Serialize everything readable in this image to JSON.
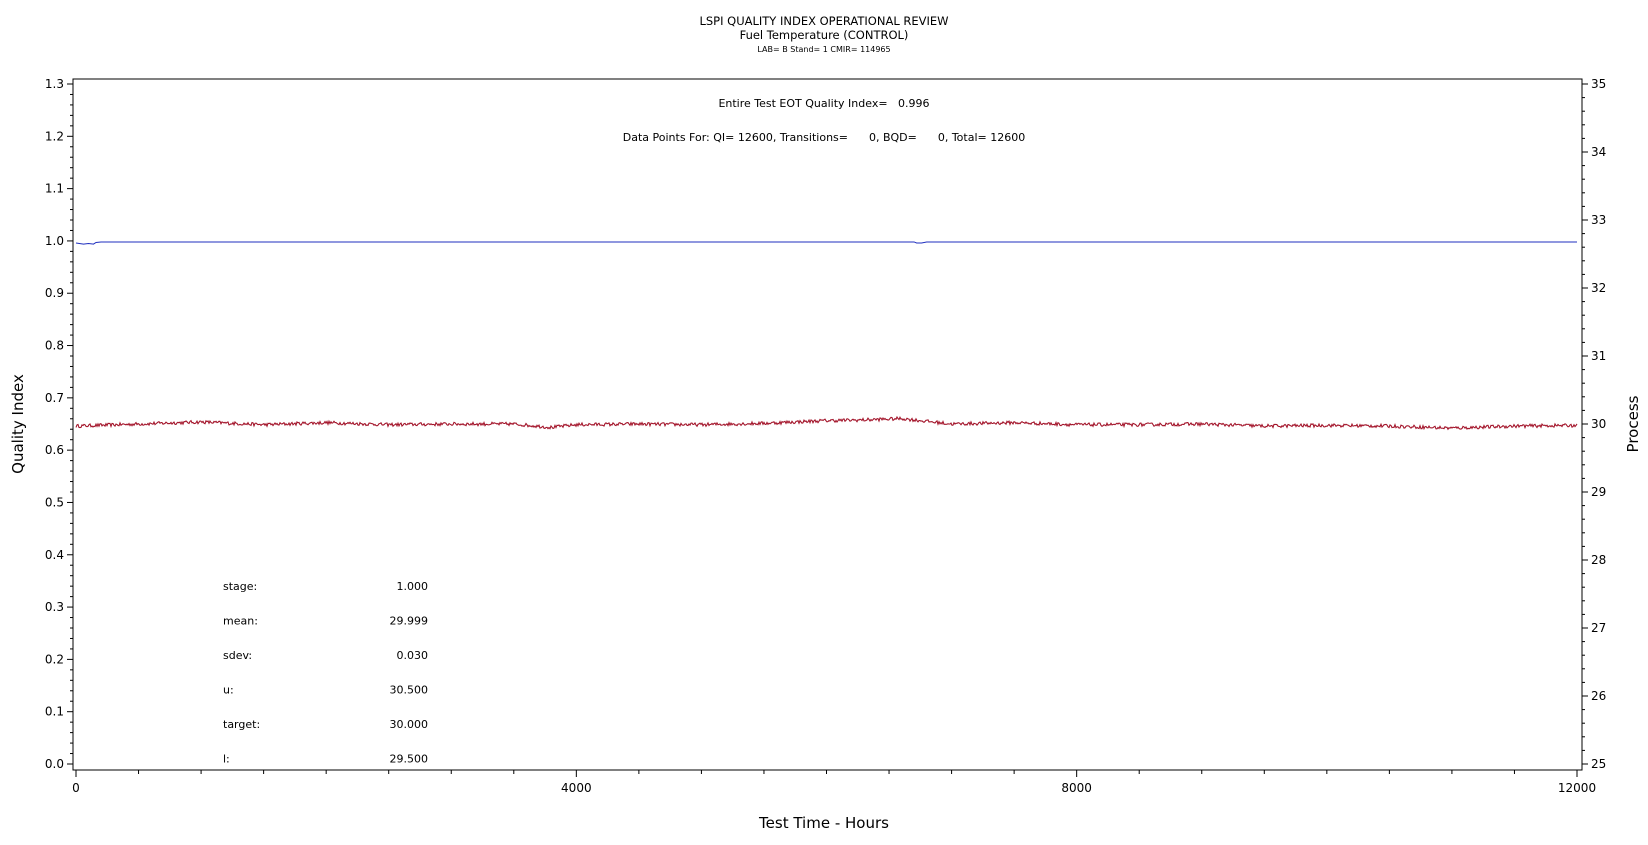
{
  "chart_data": {
    "type": "line",
    "title": "LSPI QUALITY INDEX OPERATIONAL REVIEW",
    "subtitle": "Fuel Temperature (CONTROL)",
    "subtitle2": "LAB= B Stand= 1 CMIR= 114965",
    "xlabel": "Test Time - Hours",
    "ylabel": "Quality Index",
    "y2label": "Process",
    "xlim": [
      0,
      12000
    ],
    "ylim": [
      0,
      1.3
    ],
    "y2lim": [
      25,
      35
    ],
    "x_ticks": [
      "0",
      "4000",
      "8000",
      "12000"
    ],
    "x_tick_values": [
      0,
      4000,
      8000,
      12000
    ],
    "y_ticks": [
      "0.0",
      "0.1",
      "0.2",
      "0.3",
      "0.4",
      "0.5",
      "0.6",
      "0.7",
      "0.8",
      "0.9",
      "1.0",
      "1.1",
      "1.2",
      "1.3"
    ],
    "y_tick_values": [
      0,
      0.1,
      0.2,
      0.3,
      0.4,
      0.5,
      0.6,
      0.7,
      0.8,
      0.9,
      1.0,
      1.1,
      1.2,
      1.3
    ],
    "y2_ticks": [
      "25",
      "26",
      "27",
      "28",
      "29",
      "30",
      "31",
      "32",
      "33",
      "34",
      "35"
    ],
    "y2_tick_values": [
      25,
      26,
      27,
      28,
      29,
      30,
      31,
      32,
      33,
      34,
      35
    ],
    "annotations": {
      "quality_index": "Entire Test EOT Quality Index=   0.996",
      "data_points": "Data Points For: QI= 12600, Transitions=      0, BQD=      0, Total= 12600"
    },
    "stats": [
      {
        "label": "stage:",
        "value": "1.000"
      },
      {
        "label": "mean:",
        "value": "29.999"
      },
      {
        "label": "sdev:",
        "value": "0.030"
      },
      {
        "label": "u:",
        "value": "30.500"
      },
      {
        "label": "target:",
        "value": "30.000"
      },
      {
        "label": "l:",
        "value": "29.500"
      }
    ],
    "series": [
      {
        "axis": "left",
        "color": "#1f2fbf",
        "x": [
          0,
          60,
          100,
          140,
          160,
          200,
          6700,
          6720,
          6760,
          6800,
          12000
        ],
        "y": [
          0.996,
          0.994,
          0.995,
          0.994,
          0.997,
          0.998,
          0.998,
          0.996,
          0.996,
          0.998,
          0.998
        ]
      },
      {
        "axis": "right",
        "color": "#a3142a",
        "x": [
          0,
          500,
          1000,
          1500,
          2000,
          2500,
          3000,
          3500,
          3800,
          4000,
          4500,
          5000,
          5500,
          6000,
          6300,
          6600,
          7000,
          7500,
          8000,
          8500,
          9000,
          9500,
          10000,
          10500,
          11000,
          11500,
          12000
        ],
        "y": [
          29.97,
          30.0,
          30.03,
          29.99,
          30.02,
          29.99,
          30.0,
          30.0,
          29.95,
          29.99,
          30.0,
          29.99,
          30.01,
          30.05,
          30.06,
          30.08,
          30.0,
          30.02,
          29.99,
          29.99,
          30.0,
          29.97,
          29.98,
          29.97,
          29.94,
          29.97,
          29.98
        ]
      }
    ]
  }
}
